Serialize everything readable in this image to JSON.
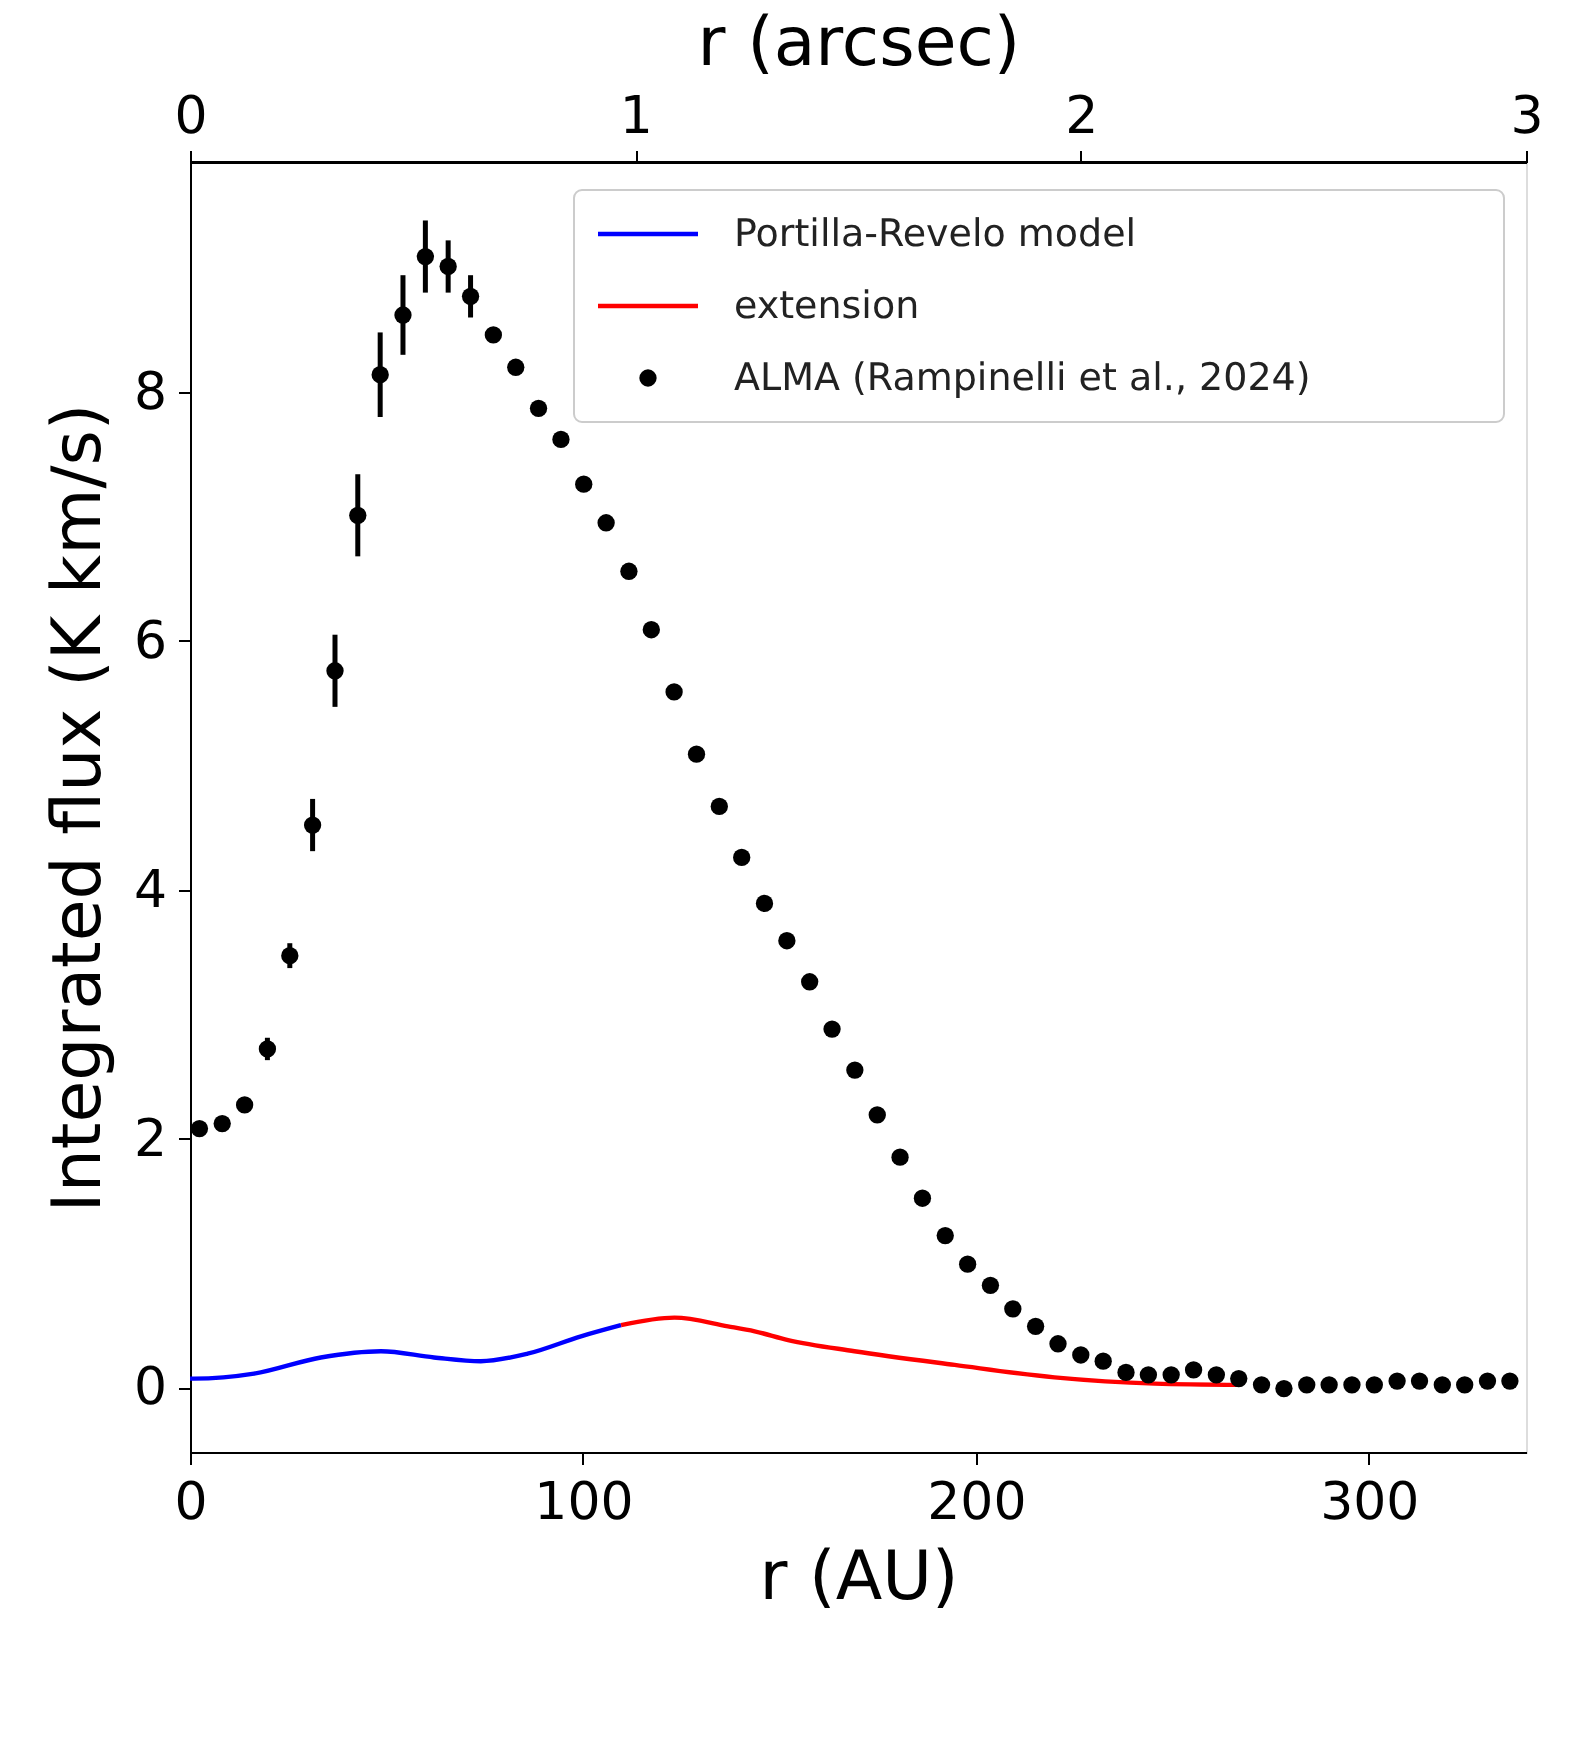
{
  "chart_data": {
    "type": "scatter",
    "xlabel": "r (AU)",
    "ylabel": "Integrated flux (K km/s)",
    "x2label": "r (arcsec)",
    "xlim": [
      0,
      340
    ],
    "xticks": [
      0,
      100,
      200,
      300
    ],
    "ylim": [
      -0.52,
      9.85
    ],
    "yticks": [
      0,
      2,
      4,
      6,
      8
    ],
    "x2lim": [
      0,
      3
    ],
    "x2ticks": [
      0,
      1,
      2,
      3
    ],
    "grid": false,
    "legend": "top right",
    "series": [
      {
        "name": "Portilla-Revelo model",
        "type": "line",
        "color": "#0000ff",
        "x": [
          0,
          1,
          16.3,
          33.3,
          48.6,
          62.1,
          74,
          85.9,
          99.5,
          109.7
        ],
        "values": [
          0.07,
          0.07,
          0.11,
          0.24,
          0.29,
          0.24,
          0.21,
          0.27,
          0.41,
          0.5
        ]
      },
      {
        "name": "extension",
        "type": "line",
        "color": "#ff0000",
        "x": [
          109.7,
          123.3,
          136.9,
          143.7,
          152.2,
          169.1,
          194.6,
          220,
          245.5,
          267.4
        ],
        "values": [
          0.5,
          0.56,
          0.49,
          0.45,
          0.38,
          0.29,
          0.18,
          0.08,
          0.03,
          0.02
        ]
      },
      {
        "name": "ALMA (Rampinelli et al., 2024)",
        "color": "#000000",
        "marker": "circle",
        "x": [
          2.4,
          8.2,
          13.9,
          19.7,
          25.4,
          31.2,
          36.9,
          42.7,
          48.4,
          54.2,
          59.9,
          65.7,
          71.4,
          77.2,
          82.9,
          88.7,
          94.4,
          100.2,
          105.9,
          111.7,
          117.4,
          123.2,
          128.9,
          134.7,
          140.4,
          146.2,
          151.9,
          157.7,
          163.4,
          169.2,
          174.9,
          180.7,
          186.4,
          192.2,
          197.9,
          203.7,
          209.4,
          215.2,
          220.9,
          226.7,
          232.4,
          238.2,
          243.9,
          249.7,
          255.4,
          261.2,
          266.9,
          272.7,
          278.4,
          284.2,
          289.9,
          295.7,
          301.4,
          307.2,
          312.9,
          318.7,
          324.4,
          330.2,
          335.9
        ],
        "values": [
          2.08,
          2.12,
          2.27,
          2.72,
          3.47,
          4.52,
          5.76,
          7.01,
          8.14,
          8.62,
          9.09,
          9.01,
          8.77,
          8.46,
          8.2,
          7.87,
          7.62,
          7.26,
          6.95,
          6.56,
          6.09,
          5.59,
          5.09,
          4.67,
          4.26,
          3.89,
          3.59,
          3.26,
          2.88,
          2.55,
          2.19,
          1.85,
          1.52,
          1.22,
          0.99,
          0.82,
          0.63,
          0.49,
          0.35,
          0.26,
          0.21,
          0.12,
          0.1,
          0.1,
          0.14,
          0.1,
          0.07,
          0.02,
          -0.01,
          0.02,
          0.02,
          0.02,
          0.02,
          0.05,
          0.05,
          0.02,
          0.02,
          0.05,
          0.05
        ],
        "errors": [
          null,
          null,
          null,
          0.09,
          0.1,
          0.21,
          0.29,
          0.33,
          0.34,
          0.32,
          0.29,
          0.21,
          0.17,
          null,
          null,
          null,
          null,
          null,
          null,
          null,
          null,
          null,
          null,
          null,
          null,
          null,
          null,
          null,
          null,
          null,
          null,
          null,
          null,
          null,
          null,
          null,
          null,
          null,
          null,
          null,
          null,
          null,
          null,
          null,
          null,
          null,
          null,
          null,
          null,
          null,
          null,
          null,
          null,
          null,
          null,
          null,
          null,
          null,
          null
        ]
      }
    ]
  }
}
